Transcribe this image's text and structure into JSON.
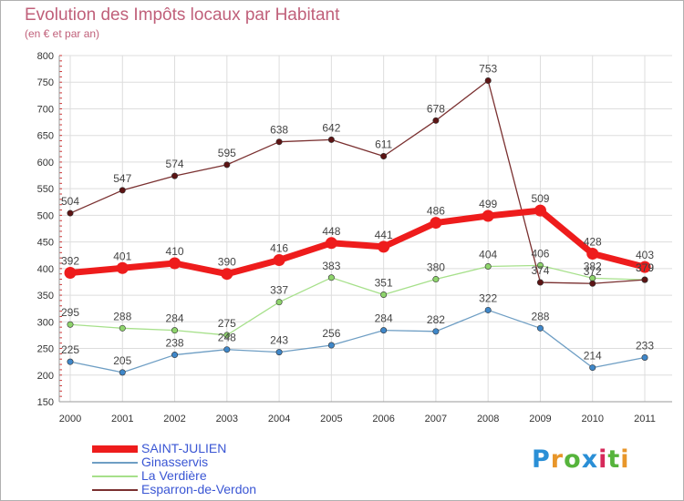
{
  "title": "Evolution des Impôts locaux par Habitant",
  "subtitle": "(en € et par an)",
  "logo": {
    "text": "Proxiti",
    "colors": [
      "#2a8fd6",
      "#e8962a",
      "#56b43c",
      "#2a8fd6",
      "#d62a5a",
      "#56b43c",
      "#e8962a"
    ]
  },
  "chart_data": {
    "type": "line",
    "title": "Evolution des Impôts locaux par Habitant",
    "subtitle": "(en € et par an)",
    "xlabel": "",
    "ylabel": "",
    "categories": [
      "2000",
      "2001",
      "2002",
      "2003",
      "2004",
      "2005",
      "2006",
      "2007",
      "2008",
      "2009",
      "2010",
      "2011"
    ],
    "ylim": [
      150,
      800
    ],
    "yticks": [
      150,
      200,
      250,
      300,
      350,
      400,
      450,
      500,
      550,
      600,
      650,
      700,
      750,
      800
    ],
    "grid": true,
    "legend_position": "bottom-left",
    "series": [
      {
        "name": "SAINT-JULIEN",
        "color": "#ee1c1c",
        "marker": "#ee1c1c",
        "width": "thick",
        "values": [
          392,
          401,
          410,
          390,
          416,
          448,
          441,
          486,
          499,
          509,
          428,
          403
        ]
      },
      {
        "name": "Ginasservis",
        "color": "#6e9ec4",
        "marker": "#3f87c9",
        "width": "thin",
        "values": [
          225,
          205,
          238,
          248,
          243,
          256,
          284,
          282,
          322,
          288,
          214,
          233
        ]
      },
      {
        "name": "La Verdière",
        "color": "#a6e08a",
        "marker": "#8ed46c",
        "width": "thin",
        "values": [
          295,
          288,
          284,
          275,
          337,
          383,
          351,
          380,
          404,
          406,
          382,
          379
        ]
      },
      {
        "name": "Esparron-de-Verdon",
        "color": "#7a3030",
        "marker": "#5c1414",
        "width": "thin",
        "values": [
          504,
          547,
          574,
          595,
          638,
          642,
          611,
          678,
          753,
          374,
          372,
          379
        ]
      }
    ]
  }
}
